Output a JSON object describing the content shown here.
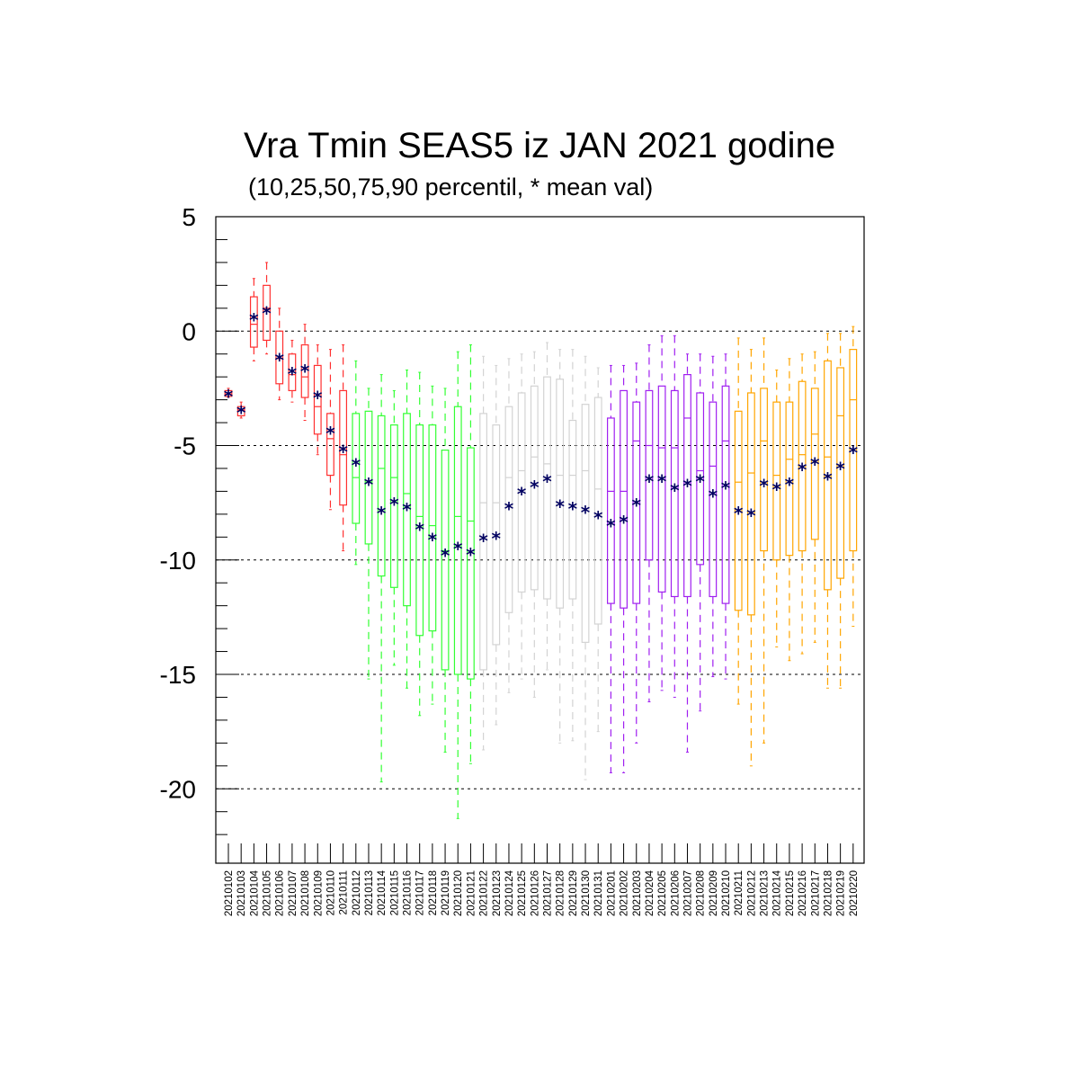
{
  "chart_data": {
    "type": "box",
    "title": "Vra Tmin SEAS5 iz JAN 2021 godine",
    "subtitle": "(10,25,50,75,90 percentil, * mean val)",
    "xlabel": "",
    "ylabel": "",
    "ylim": [
      -22.5,
      5
    ],
    "yticks": [
      5,
      0,
      -5,
      -10,
      -15,
      -20
    ],
    "grid": "horizontal dashed at major ticks",
    "legend": "none",
    "colors": {
      "red": "#ff3030",
      "green": "#33ff33",
      "gray": "#d3d3d3",
      "purple": "#a020f0",
      "orange": "#ffa500",
      "mean": "#000060",
      "axis": "#000000"
    },
    "categories": [
      "20210102",
      "20210103",
      "20210104",
      "20210105",
      "20210106",
      "20210107",
      "20210108",
      "20210109",
      "20210110",
      "20210111",
      "20210112",
      "20210113",
      "20210114",
      "20210115",
      "20210116",
      "20210117",
      "20210118",
      "20210119",
      "20210120",
      "20210121",
      "20210122",
      "20210123",
      "20210124",
      "20210125",
      "20210126",
      "20210127",
      "20210128",
      "20210129",
      "20210130",
      "20210131",
      "20210201",
      "20210202",
      "20210203",
      "20210204",
      "20210205",
      "20210206",
      "20210207",
      "20210208",
      "20210209",
      "20210210",
      "20210211",
      "20210212",
      "20210213",
      "20210214",
      "20210215",
      "20210216",
      "20210217",
      "20210218",
      "20210219",
      "20210220"
    ],
    "boxes": [
      {
        "p10": -2.9,
        "p25": -2.85,
        "p50": -2.75,
        "p75": -2.6,
        "p90": -2.5,
        "mean": -2.75,
        "color": "red"
      },
      {
        "p10": -3.8,
        "p25": -3.7,
        "p50": -3.45,
        "p75": -3.3,
        "p90": -3.1,
        "mean": -3.45,
        "color": "red"
      },
      {
        "p10": -1.3,
        "p25": -0.7,
        "p50": 0.3,
        "p75": 1.5,
        "p90": 2.3,
        "mean": 0.6,
        "color": "red"
      },
      {
        "p10": -1.0,
        "p25": -0.4,
        "p50": 1.0,
        "p75": 2.0,
        "p90": 3.0,
        "mean": 0.9,
        "color": "red"
      },
      {
        "p10": -3.0,
        "p25": -2.3,
        "p50": -1.2,
        "p75": 0.0,
        "p90": 1.0,
        "mean": -1.15,
        "color": "red"
      },
      {
        "p10": -3.1,
        "p25": -2.6,
        "p50": -1.9,
        "p75": -1.0,
        "p90": -0.4,
        "mean": -1.75,
        "color": "red"
      },
      {
        "p10": -3.9,
        "p25": -2.9,
        "p50": -2.0,
        "p75": -0.6,
        "p90": 0.3,
        "mean": -1.65,
        "color": "red"
      },
      {
        "p10": -5.4,
        "p25": -4.5,
        "p50": -3.3,
        "p75": -1.5,
        "p90": -0.6,
        "mean": -2.8,
        "color": "red"
      },
      {
        "p10": -7.8,
        "p25": -6.3,
        "p50": -4.7,
        "p75": -3.6,
        "p90": -0.8,
        "mean": -4.35,
        "color": "red"
      },
      {
        "p10": -9.6,
        "p25": -7.6,
        "p50": -5.4,
        "p75": -2.6,
        "p90": -0.6,
        "mean": -5.15,
        "color": "red"
      },
      {
        "p10": -10.2,
        "p25": -8.4,
        "p50": -6.4,
        "p75": -3.6,
        "p90": -1.3,
        "mean": -5.75,
        "color": "green"
      },
      {
        "p10": -15.2,
        "p25": -9.3,
        "p50": -6.6,
        "p75": -3.5,
        "p90": -2.5,
        "mean": -6.6,
        "color": "green"
      },
      {
        "p10": -19.7,
        "p25": -10.7,
        "p50": -6.0,
        "p75": -3.7,
        "p90": -1.9,
        "mean": -7.85,
        "color": "green"
      },
      {
        "p10": -14.6,
        "p25": -11.2,
        "p50": -6.4,
        "p75": -4.1,
        "p90": -2.6,
        "mean": -7.45,
        "color": "green"
      },
      {
        "p10": -15.6,
        "p25": -12.0,
        "p50": -7.1,
        "p75": -3.6,
        "p90": -1.7,
        "mean": -7.7,
        "color": "green"
      },
      {
        "p10": -16.8,
        "p25": -13.3,
        "p50": -8.1,
        "p75": -4.1,
        "p90": -1.8,
        "mean": -8.55,
        "color": "green"
      },
      {
        "p10": -16.3,
        "p25": -13.1,
        "p50": -8.5,
        "p75": -4.1,
        "p90": -2.4,
        "mean": -9.0,
        "color": "green"
      },
      {
        "p10": -18.4,
        "p25": -14.8,
        "p50": -9.6,
        "p75": -5.2,
        "p90": -2.5,
        "mean": -9.7,
        "color": "green"
      },
      {
        "p10": -21.3,
        "p25": -15.0,
        "p50": -8.1,
        "p75": -3.3,
        "p90": -0.9,
        "mean": -9.4,
        "color": "green"
      },
      {
        "p10": -18.9,
        "p25": -15.2,
        "p50": -8.3,
        "p75": -5.1,
        "p90": -0.6,
        "mean": -9.65,
        "color": "green"
      },
      {
        "p10": -18.3,
        "p25": -14.8,
        "p50": -7.5,
        "p75": -3.6,
        "p90": -1.1,
        "mean": -9.05,
        "color": "gray"
      },
      {
        "p10": -17.2,
        "p25": -13.7,
        "p50": -7.5,
        "p75": -4.1,
        "p90": -1.5,
        "mean": -8.95,
        "color": "gray"
      },
      {
        "p10": -15.8,
        "p25": -12.3,
        "p50": -6.4,
        "p75": -3.3,
        "p90": -1.2,
        "mean": -7.65,
        "color": "gray"
      },
      {
        "p10": -15.2,
        "p25": -11.4,
        "p50": -6.1,
        "p75": -2.7,
        "p90": -1.0,
        "mean": -7.0,
        "color": "gray"
      },
      {
        "p10": -16.0,
        "p25": -11.3,
        "p50": -5.5,
        "p75": -2.4,
        "p90": -0.9,
        "mean": -6.7,
        "color": "gray"
      },
      {
        "p10": -14.8,
        "p25": -11.7,
        "p50": -5.8,
        "p75": -2.0,
        "p90": -0.5,
        "mean": -6.45,
        "color": "gray"
      },
      {
        "p10": -18.0,
        "p25": -12.1,
        "p50": -6.3,
        "p75": -2.1,
        "p90": -0.8,
        "mean": -7.55,
        "color": "gray"
      },
      {
        "p10": -17.9,
        "p25": -11.7,
        "p50": -6.3,
        "p75": -3.9,
        "p90": -0.8,
        "mean": -7.65,
        "color": "gray"
      },
      {
        "p10": -19.6,
        "p25": -13.6,
        "p50": -6.1,
        "p75": -3.2,
        "p90": -1.1,
        "mean": -7.8,
        "color": "gray"
      },
      {
        "p10": -17.5,
        "p25": -12.8,
        "p50": -6.9,
        "p75": -2.9,
        "p90": -1.6,
        "mean": -8.05,
        "color": "gray"
      },
      {
        "p10": -19.3,
        "p25": -11.9,
        "p50": -7.0,
        "p75": -3.8,
        "p90": -1.5,
        "mean": -8.4,
        "color": "purple"
      },
      {
        "p10": -19.3,
        "p25": -12.1,
        "p50": -7.0,
        "p75": -2.6,
        "p90": -1.5,
        "mean": -8.25,
        "color": "purple"
      },
      {
        "p10": -18.0,
        "p25": -11.9,
        "p50": -4.8,
        "p75": -3.1,
        "p90": -1.4,
        "mean": -7.5,
        "color": "purple"
      },
      {
        "p10": -16.2,
        "p25": -10.0,
        "p50": -5.0,
        "p75": -2.6,
        "p90": -0.6,
        "mean": -6.45,
        "color": "purple"
      },
      {
        "p10": -15.7,
        "p25": -11.4,
        "p50": -5.1,
        "p75": -2.4,
        "p90": -0.2,
        "mean": -6.45,
        "color": "purple"
      },
      {
        "p10": -16.0,
        "p25": -11.6,
        "p50": -5.1,
        "p75": -2.6,
        "p90": -0.2,
        "mean": -6.85,
        "color": "purple"
      },
      {
        "p10": -18.4,
        "p25": -11.6,
        "p50": -3.8,
        "p75": -1.9,
        "p90": -1.0,
        "mean": -6.65,
        "color": "purple"
      },
      {
        "p10": -16.6,
        "p25": -10.2,
        "p50": -6.1,
        "p75": -2.7,
        "p90": -1.0,
        "mean": -6.45,
        "color": "purple"
      },
      {
        "p10": -15.1,
        "p25": -11.6,
        "p50": -5.9,
        "p75": -3.1,
        "p90": -1.1,
        "mean": -7.1,
        "color": "purple"
      },
      {
        "p10": -15.2,
        "p25": -11.9,
        "p50": -4.8,
        "p75": -2.4,
        "p90": -1.0,
        "mean": -6.75,
        "color": "purple"
      },
      {
        "p10": -16.3,
        "p25": -12.2,
        "p50": -6.6,
        "p75": -3.5,
        "p90": -0.3,
        "mean": -7.85,
        "color": "orange"
      },
      {
        "p10": -19.0,
        "p25": -12.4,
        "p50": -6.2,
        "p75": -2.7,
        "p90": -0.8,
        "mean": -7.95,
        "color": "orange"
      },
      {
        "p10": -18.0,
        "p25": -9.6,
        "p50": -4.8,
        "p75": -2.5,
        "p90": -0.3,
        "mean": -6.65,
        "color": "orange"
      },
      {
        "p10": -13.8,
        "p25": -10.0,
        "p50": -6.3,
        "p75": -3.1,
        "p90": -1.7,
        "mean": -6.8,
        "color": "orange"
      },
      {
        "p10": -14.4,
        "p25": -9.8,
        "p50": -5.6,
        "p75": -3.1,
        "p90": -1.2,
        "mean": -6.6,
        "color": "orange"
      },
      {
        "p10": -14.1,
        "p25": -9.6,
        "p50": -5.4,
        "p75": -2.2,
        "p90": -1.0,
        "mean": -5.95,
        "color": "orange"
      },
      {
        "p10": -13.6,
        "p25": -9.1,
        "p50": -4.5,
        "p75": -2.5,
        "p90": -0.9,
        "mean": -5.7,
        "color": "orange"
      },
      {
        "p10": -15.6,
        "p25": -11.3,
        "p50": -5.5,
        "p75": -1.3,
        "p90": -0.1,
        "mean": -6.35,
        "color": "orange"
      },
      {
        "p10": -15.6,
        "p25": -10.8,
        "p50": -3.7,
        "p75": -1.6,
        "p90": -0.1,
        "mean": -5.9,
        "color": "orange"
      },
      {
        "p10": -12.9,
        "p25": -9.6,
        "p50": -3.0,
        "p75": -0.8,
        "p90": 0.2,
        "mean": -5.2,
        "color": "orange"
      }
    ]
  }
}
